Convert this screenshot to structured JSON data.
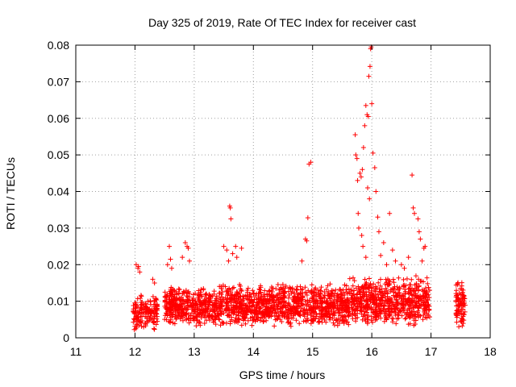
{
  "chart_data": {
    "type": "scatter",
    "title": "Day 325 of 2019, Rate Of TEC Index for receiver cast",
    "xlabel": "GPS time / hours",
    "ylabel": "ROTI / TECUs",
    "xlim": [
      11,
      18
    ],
    "ylim": [
      0,
      0.08
    ],
    "x_ticks": [
      "11",
      "12",
      "13",
      "14",
      "15",
      "16",
      "17",
      "18"
    ],
    "y_ticks": [
      "0",
      "0.01",
      "0.02",
      "0.03",
      "0.04",
      "0.05",
      "0.06",
      "0.07",
      "0.08"
    ],
    "grid": true,
    "marker": "+",
    "color": "#ff0000",
    "series": [
      {
        "name": "ROTI",
        "bands": [
          {
            "x_start": 11.97,
            "x_end": 12.38,
            "y_min": 0.002,
            "y_max": 0.012,
            "count": 160
          },
          {
            "x_start": 12.5,
            "x_end": 13.4,
            "y_min": 0.003,
            "y_max": 0.014,
            "count": 420
          },
          {
            "x_start": 13.4,
            "x_end": 14.5,
            "y_min": 0.003,
            "y_max": 0.015,
            "count": 520
          },
          {
            "x_start": 14.5,
            "x_end": 15.6,
            "y_min": 0.003,
            "y_max": 0.015,
            "count": 520
          },
          {
            "x_start": 15.6,
            "x_end": 16.98,
            "y_min": 0.003,
            "y_max": 0.017,
            "count": 640
          },
          {
            "x_start": 17.42,
            "x_end": 17.58,
            "y_min": 0.002,
            "y_max": 0.016,
            "count": 90
          }
        ],
        "points": [
          [
            12.02,
            0.02
          ],
          [
            12.05,
            0.019
          ],
          [
            12.08,
            0.018
          ],
          [
            12.06,
            0.0195
          ],
          [
            12.3,
            0.016
          ],
          [
            12.33,
            0.015
          ],
          [
            12.55,
            0.02
          ],
          [
            12.58,
            0.025
          ],
          [
            12.62,
            0.019
          ],
          [
            12.6,
            0.0215
          ],
          [
            12.85,
            0.026
          ],
          [
            12.88,
            0.025
          ],
          [
            12.9,
            0.0245
          ],
          [
            12.8,
            0.022
          ],
          [
            12.92,
            0.021
          ],
          [
            13.5,
            0.025
          ],
          [
            13.55,
            0.024
          ],
          [
            13.6,
            0.036
          ],
          [
            13.61,
            0.0355
          ],
          [
            13.62,
            0.0325
          ],
          [
            13.65,
            0.023
          ],
          [
            13.7,
            0.025
          ],
          [
            13.72,
            0.022
          ],
          [
            13.8,
            0.0245
          ],
          [
            13.58,
            0.021
          ],
          [
            14.82,
            0.021
          ],
          [
            14.88,
            0.027
          ],
          [
            14.9,
            0.0265
          ],
          [
            14.92,
            0.0328
          ],
          [
            14.94,
            0.0475
          ],
          [
            14.97,
            0.048
          ],
          [
            15.72,
            0.0555
          ],
          [
            15.73,
            0.05
          ],
          [
            15.75,
            0.049
          ],
          [
            15.77,
            0.034
          ],
          [
            15.78,
            0.03
          ],
          [
            15.76,
            0.043
          ],
          [
            15.8,
            0.045
          ],
          [
            15.82,
            0.044
          ],
          [
            15.84,
            0.046
          ],
          [
            15.86,
            0.052
          ],
          [
            15.88,
            0.058
          ],
          [
            15.9,
            0.0635
          ],
          [
            15.92,
            0.061
          ],
          [
            15.94,
            0.0605
          ],
          [
            15.95,
            0.0715
          ],
          [
            15.97,
            0.0742
          ],
          [
            15.98,
            0.079
          ],
          [
            15.99,
            0.0795
          ],
          [
            16.0,
            0.064
          ],
          [
            16.02,
            0.0505
          ],
          [
            16.05,
            0.0465
          ],
          [
            16.07,
            0.04
          ],
          [
            16.1,
            0.033
          ],
          [
            15.93,
            0.041
          ],
          [
            15.96,
            0.038
          ],
          [
            16.12,
            0.029
          ],
          [
            16.2,
            0.026
          ],
          [
            16.3,
            0.034
          ],
          [
            16.35,
            0.024
          ],
          [
            16.4,
            0.021
          ],
          [
            16.68,
            0.0445
          ],
          [
            16.7,
            0.0355
          ],
          [
            16.72,
            0.034
          ],
          [
            16.78,
            0.0325
          ],
          [
            16.8,
            0.029
          ],
          [
            16.82,
            0.027
          ],
          [
            16.85,
            0.021
          ],
          [
            16.88,
            0.0245
          ],
          [
            16.9,
            0.025
          ],
          [
            16.62,
            0.022
          ],
          [
            16.5,
            0.02
          ],
          [
            16.55,
            0.019
          ],
          [
            15.85,
            0.025
          ],
          [
            15.83,
            0.028
          ],
          [
            15.9,
            0.022
          ],
          [
            16.15,
            0.0225
          ],
          [
            16.25,
            0.02
          ]
        ]
      }
    ]
  }
}
